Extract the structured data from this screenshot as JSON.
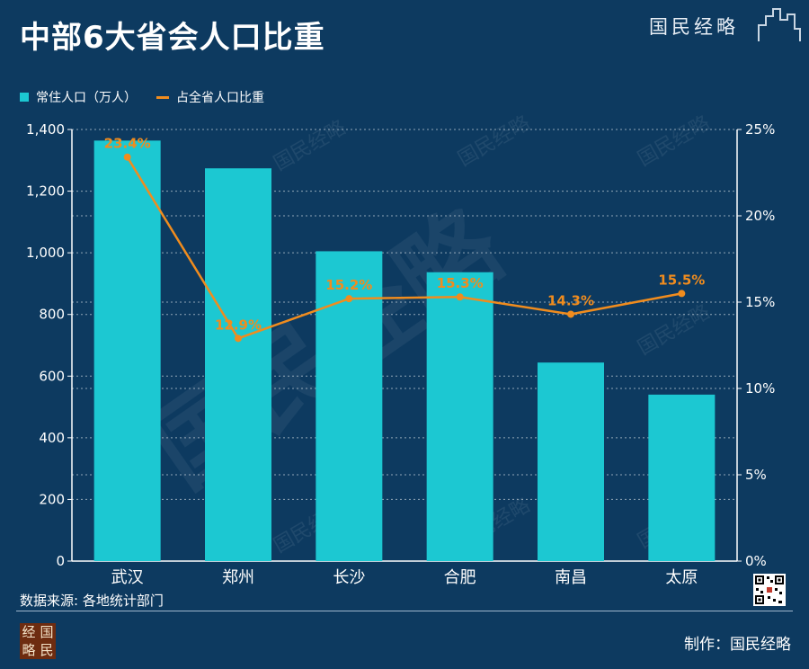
{
  "header": {
    "title": "中部6大省会人口比重",
    "brand": "国民经略"
  },
  "legend": {
    "bar_label": "常住人口（万人）",
    "line_label": "占全省人口比重"
  },
  "chart_data": {
    "type": "bar",
    "title": "中部6大省会人口比重",
    "categories": [
      "武汉",
      "郑州",
      "长沙",
      "合肥",
      "南昌",
      "太原"
    ],
    "series": [
      {
        "name": "常住人口（万人）",
        "type": "bar",
        "axis": "left",
        "values": [
          1364,
          1274,
          1005,
          937,
          644,
          540
        ]
      },
      {
        "name": "占全省人口比重",
        "type": "line",
        "axis": "right",
        "values": [
          23.4,
          12.9,
          15.2,
          15.3,
          14.3,
          15.5
        ],
        "labels": [
          "23.4%",
          "12.9%",
          "15.2%",
          "15.3%",
          "14.3%",
          "15.5%"
        ]
      }
    ],
    "y_left": {
      "min": 0,
      "max": 1400,
      "ticks": [
        0,
        200,
        400,
        600,
        800,
        1000,
        1200,
        1400
      ],
      "tick_labels": [
        "0",
        "200",
        "400",
        "600",
        "800",
        "1,000",
        "1,200",
        "1,400"
      ]
    },
    "y_right": {
      "min": 0,
      "max": 25,
      "ticks": [
        0,
        5,
        10,
        15,
        20,
        25
      ],
      "tick_labels": [
        "0%",
        "5%",
        "10%",
        "15%",
        "20%",
        "25%"
      ]
    },
    "grid": true,
    "legend_position": "top-left",
    "colors": {
      "bar": "#1cc8d2",
      "line": "#f08c1e"
    }
  },
  "footer": {
    "source": "数据来源: 各地统计部门",
    "credit": "制作：国民经略",
    "logo_chars": [
      "经",
      "国",
      "略",
      "民"
    ]
  },
  "watermark_text": "国民经略"
}
